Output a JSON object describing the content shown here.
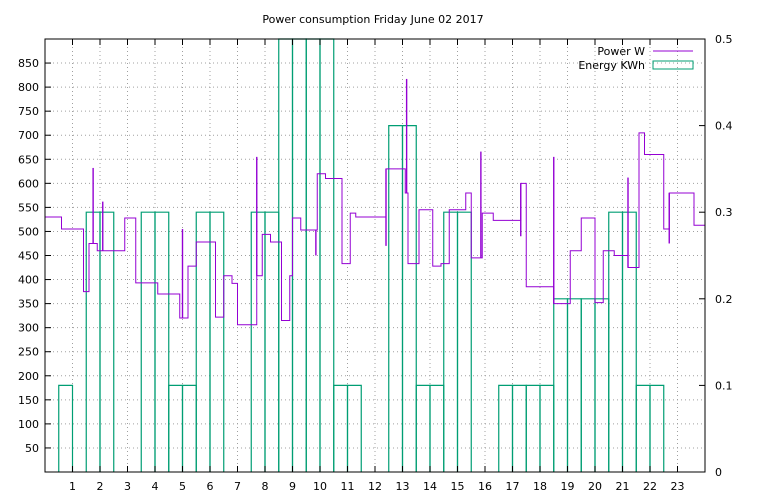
{
  "chart_data": {
    "type": "line",
    "title": "Power consumption Friday June 02 2017",
    "xlabel": "",
    "ylabel": "",
    "x_range": [
      0,
      24
    ],
    "y_left_range": [
      0,
      900
    ],
    "y_right_range": [
      0,
      0.5
    ],
    "x_ticks": [
      1,
      2,
      3,
      4,
      5,
      6,
      7,
      8,
      9,
      10,
      11,
      12,
      13,
      14,
      15,
      16,
      17,
      18,
      19,
      20,
      21,
      22,
      23
    ],
    "y_left_ticks": [
      50,
      100,
      150,
      200,
      250,
      300,
      350,
      400,
      450,
      500,
      550,
      600,
      650,
      700,
      750,
      800,
      850
    ],
    "y_right_ticks": [
      0,
      0.1,
      0.2,
      0.3,
      0.4,
      0.5
    ],
    "grid": true,
    "legend_position": "top-right",
    "colors": {
      "power": "#9400d3",
      "energy": "#009e73"
    },
    "series": [
      {
        "name": "Power W",
        "axis": "left",
        "style": "steps",
        "points": [
          [
            0,
            530
          ],
          [
            0.6,
            505
          ],
          [
            1.4,
            375
          ],
          [
            1.6,
            475
          ],
          [
            1.9,
            460
          ],
          [
            2.9,
            528
          ],
          [
            3.3,
            393
          ],
          [
            4.1,
            370
          ],
          [
            4.9,
            320
          ],
          [
            5.2,
            428
          ],
          [
            5.5,
            478
          ],
          [
            6.2,
            322
          ],
          [
            6.5,
            408
          ],
          [
            6.8,
            392
          ],
          [
            7.0,
            306
          ],
          [
            7.7,
            408
          ],
          [
            7.9,
            494
          ],
          [
            8.2,
            478
          ],
          [
            8.6,
            315
          ],
          [
            8.9,
            408
          ],
          [
            9.0,
            528
          ],
          [
            9.3,
            503
          ],
          [
            9.9,
            620
          ],
          [
            10.2,
            610
          ],
          [
            10.8,
            433
          ],
          [
            11.1,
            538
          ],
          [
            11.3,
            530
          ],
          [
            12.4,
            630
          ],
          [
            13.1,
            580
          ],
          [
            13.2,
            433
          ],
          [
            13.6,
            545
          ],
          [
            14.1,
            428
          ],
          [
            14.4,
            433
          ],
          [
            14.7,
            545
          ],
          [
            15.3,
            580
          ],
          [
            15.5,
            445
          ],
          [
            15.9,
            538
          ],
          [
            16.3,
            523
          ],
          [
            17.3,
            600
          ],
          [
            17.5,
            385
          ],
          [
            18.5,
            350
          ],
          [
            19.1,
            460
          ],
          [
            19.5,
            528
          ],
          [
            20.0,
            352
          ],
          [
            20.3,
            460
          ],
          [
            20.7,
            450
          ],
          [
            21.2,
            425
          ],
          [
            21.6,
            705
          ],
          [
            21.8,
            660
          ],
          [
            22.5,
            505
          ],
          [
            22.7,
            580
          ],
          [
            23.6,
            513
          ],
          [
            24,
            513
          ]
        ]
      },
      {
        "name": "Energy KWh",
        "axis": "right",
        "style": "impulse-boxes",
        "boxes": [
          [
            0.5,
            1.0,
            0.1
          ],
          [
            1.5,
            2.0,
            0.3
          ],
          [
            2.0,
            2.5,
            0.3
          ],
          [
            3.5,
            4.0,
            0.3
          ],
          [
            4.0,
            4.5,
            0.3
          ],
          [
            4.5,
            5.0,
            0.1
          ],
          [
            5.0,
            5.5,
            0.1
          ],
          [
            5.5,
            6.0,
            0.3
          ],
          [
            6.0,
            6.5,
            0.3
          ],
          [
            7.5,
            8.0,
            0.3
          ],
          [
            8.0,
            8.5,
            0.3
          ],
          [
            8.5,
            9.0,
            0.5
          ],
          [
            9.0,
            9.5,
            0.5
          ],
          [
            9.5,
            10.0,
            0.5
          ],
          [
            10.0,
            10.5,
            0.5
          ],
          [
            10.5,
            11.0,
            0.1
          ],
          [
            11.0,
            11.5,
            0.1
          ],
          [
            12.5,
            13.0,
            0.4
          ],
          [
            13.0,
            13.5,
            0.4
          ],
          [
            13.5,
            14.0,
            0.1
          ],
          [
            14.0,
            14.5,
            0.1
          ],
          [
            14.5,
            15.0,
            0.3
          ],
          [
            15.0,
            15.5,
            0.3
          ],
          [
            16.5,
            17.0,
            0.1
          ],
          [
            17.0,
            17.5,
            0.1
          ],
          [
            17.5,
            18.0,
            0.1
          ],
          [
            18.0,
            18.5,
            0.1
          ],
          [
            18.5,
            19.0,
            0.2
          ],
          [
            19.0,
            19.5,
            0.2
          ],
          [
            19.5,
            20.0,
            0.2
          ],
          [
            20.0,
            20.5,
            0.2
          ],
          [
            20.5,
            21.0,
            0.3
          ],
          [
            21.0,
            21.5,
            0.3
          ],
          [
            21.5,
            22.0,
            0.1
          ],
          [
            22.0,
            22.5,
            0.1
          ]
        ]
      }
    ],
    "spikes": [
      [
        1.75,
        632
      ],
      [
        2.1,
        562
      ],
      [
        5.0,
        505
      ],
      [
        7.7,
        655
      ],
      [
        9.85,
        450
      ],
      [
        12.4,
        470
      ],
      [
        13.15,
        817
      ],
      [
        15.85,
        666
      ],
      [
        17.3,
        490
      ],
      [
        18.5,
        655
      ],
      [
        21.2,
        612
      ],
      [
        22.7,
        475
      ]
    ]
  }
}
